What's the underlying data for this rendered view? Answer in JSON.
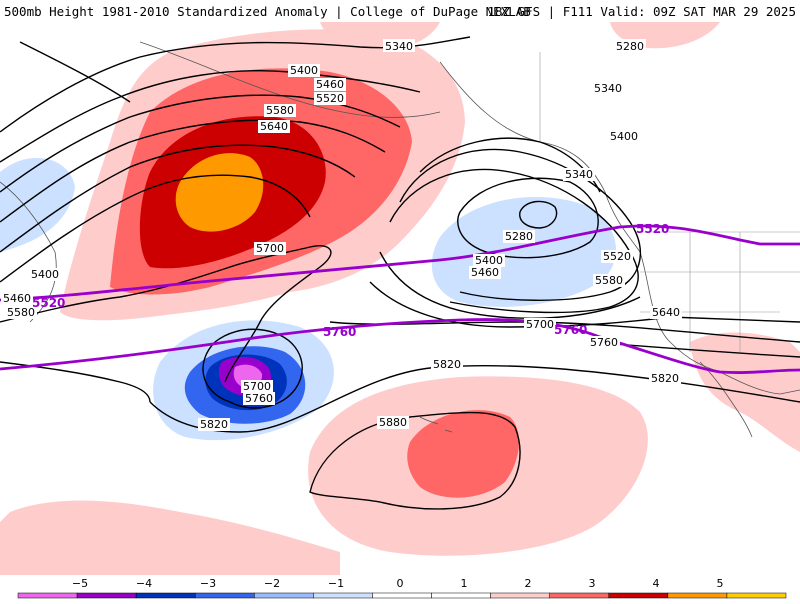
{
  "header": {
    "left": "500mb Height 1981-2010 Standardized Anomaly | College of DuPage NEXLAB",
    "right": "18Z GFS | F111 Valid: 09Z SAT MAR 29 2025"
  },
  "contour_labels": {
    "c5340a": "5340",
    "c5280a": "5280",
    "c5340b": "5340",
    "c5400a": "5400",
    "c5460a": "5460",
    "c5520a": "5520",
    "c5580a": "5580",
    "c5640a": "5640",
    "c5400b": "5400",
    "c5340c": "5340",
    "c5280b": "5280",
    "c5400c": "5400",
    "c5460b": "5460",
    "c5520b": "5520",
    "c5580b": "5580",
    "c5640b": "5640",
    "c5700a": "5700",
    "c5700b": "5700",
    "c5700c": "5700",
    "c5760a": "5760",
    "c5760b": "5760",
    "c5820a": "5820",
    "c5820b": "5820",
    "c5820c": "5820",
    "c5880a": "5880",
    "c5400d": "5400",
    "c5460c": "5460",
    "c5580c": "5580"
  },
  "highlight_labels": {
    "p5520a": "5520",
    "p5520b": "5520",
    "p5760a": "5760",
    "p5760b": "5760"
  },
  "colorbar": {
    "ticks": [
      "−5",
      "−4",
      "−3",
      "−2",
      "−1",
      "0",
      "1",
      "2",
      "3",
      "4",
      "5"
    ],
    "colors": [
      "#ee66ee",
      "#9900cc",
      "#0033bb",
      "#3366ee",
      "#99bbff",
      "#cce0ff",
      "#ffffff",
      "#ffffff",
      "#ffcccc",
      "#ff6666",
      "#cc0000",
      "#ff9900",
      "#ffcc00"
    ]
  }
}
